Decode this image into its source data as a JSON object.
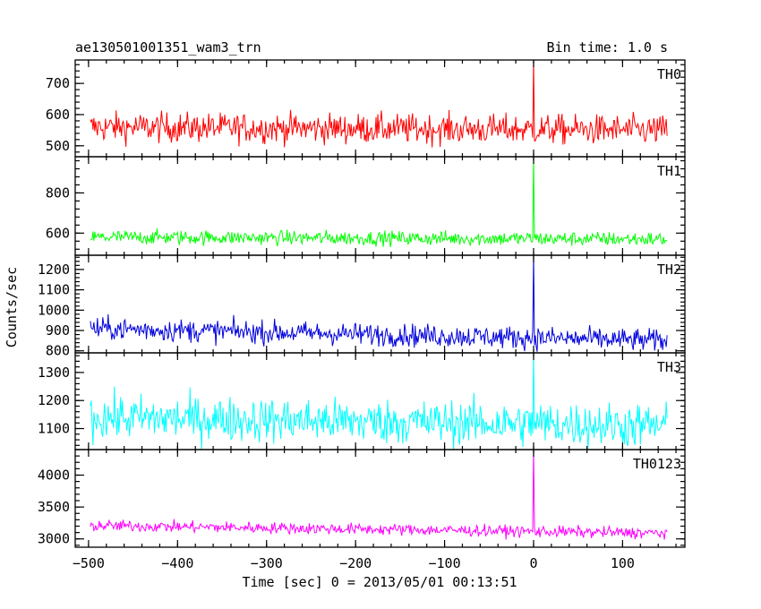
{
  "header": {
    "title": "ae130501001351_wam3_trn",
    "bin_time": "Bin time: 1.0 s"
  },
  "chart_data": {
    "type": "line",
    "title": "ae130501001351_wam3_trn",
    "subtitle": "Bin time: 1.0 s",
    "xlabel": "Time [sec] 0 = 2013/05/01 00:13:51",
    "ylabel": "Counts/sec",
    "xlim": [
      -515,
      170
    ],
    "x_ticks": [
      -500,
      -400,
      -300,
      -200,
      -100,
      0,
      100
    ],
    "x_tick_labels": [
      "−500",
      "−400",
      "−300",
      "−200",
      "−100",
      "0",
      "100"
    ],
    "x_range": [
      -498,
      150
    ],
    "trigger_time": 0,
    "panels": [
      {
        "name": "TH0",
        "color": "#ff0000",
        "ylim": [
          465,
          775
        ],
        "y_ticks": [
          500,
          600,
          700
        ],
        "y_tick_labels": [
          "500",
          "600",
          "700"
        ],
        "mean": 560,
        "noise": 24,
        "trend": -10,
        "peak": 775
      },
      {
        "name": "TH1",
        "color": "#00ff00",
        "ylim": [
          490,
          980
        ],
        "y_ticks": [
          600,
          800
        ],
        "y_tick_labels": [
          "600",
          "800"
        ],
        "mean": 580,
        "noise": 18,
        "trend": -10,
        "peak": 980
      },
      {
        "name": "TH2",
        "color": "#0000dd",
        "ylim": [
          790,
          1270
        ],
        "y_ticks": [
          800,
          900,
          1000,
          1100,
          1200
        ],
        "y_tick_labels": [
          "800",
          "900",
          "1000",
          "1100",
          "1200"
        ],
        "mean": 910,
        "noise": 28,
        "trend": -60,
        "peak": 1270
      },
      {
        "name": "TH3",
        "color": "#00ffff",
        "ylim": [
          1025,
          1370
        ],
        "y_ticks": [
          1100,
          1200,
          1300
        ],
        "y_tick_labels": [
          "1100",
          "1200",
          "1300"
        ],
        "mean": 1140,
        "noise": 40,
        "trend": -30,
        "peak": 1370
      },
      {
        "name": "TH0123",
        "color": "#ff00ff",
        "ylim": [
          2870,
          4400
        ],
        "y_ticks": [
          3000,
          3500,
          4000
        ],
        "y_tick_labels": [
          "3000",
          "3500",
          "4000"
        ],
        "mean": 3210,
        "noise": 45,
        "trend": -120,
        "peak": 4400
      }
    ]
  }
}
